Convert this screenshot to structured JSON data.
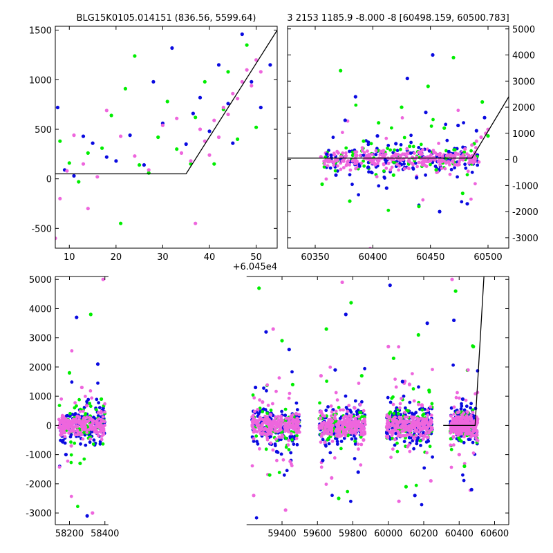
{
  "colors": {
    "green": "#00ee00",
    "blue": "#0a0ae0",
    "magenta": "#ee66dd",
    "model": "#000000"
  },
  "chart_data": [
    {
      "id": "top-left",
      "type": "scatter",
      "title": "BLG15K0105.014151 (836.56, 5599.64)",
      "xlim": [
        7,
        54.5
      ],
      "ylim": [
        -700,
        1540
      ],
      "xticks": [
        10,
        20,
        30,
        40,
        50
      ],
      "yticks": [
        -500,
        0,
        500,
        1000,
        1500
      ],
      "x_offset_label": "+6.045e4",
      "y_axis_side": "left",
      "grid": false,
      "model_line": {
        "x": [
          7,
          35,
          54.5
        ],
        "y": [
          50,
          50,
          1500
        ]
      },
      "series": [
        {
          "color_key": "green",
          "x": [
            8,
            10,
            12,
            14,
            17,
            19,
            21,
            22,
            24,
            25,
            27,
            29,
            31,
            33,
            36,
            37,
            39,
            41,
            43,
            44,
            46,
            48,
            50
          ],
          "y": [
            380,
            160,
            -30,
            260,
            310,
            640,
            -450,
            910,
            1240,
            140,
            60,
            420,
            780,
            300,
            150,
            620,
            980,
            150,
            700,
            1080,
            400,
            1350,
            520
          ]
        },
        {
          "color_key": "blue",
          "x": [
            7.5,
            9,
            11,
            13,
            15,
            18,
            20,
            23,
            26,
            28,
            30,
            32,
            35,
            36.5,
            38,
            40,
            42,
            44,
            45,
            47,
            49,
            51,
            53
          ],
          "y": [
            720,
            90,
            30,
            430,
            360,
            220,
            180,
            440,
            140,
            980,
            560,
            1320,
            350,
            660,
            820,
            480,
            1150,
            760,
            360,
            1460,
            980,
            720,
            1150
          ]
        },
        {
          "color_key": "magenta",
          "x": [
            7,
            8,
            9.5,
            11,
            13,
            14,
            16,
            18,
            21,
            24,
            27,
            30,
            33,
            34,
            36,
            37,
            38,
            39,
            40,
            41,
            42,
            43,
            44,
            45,
            46,
            47,
            48,
            49,
            50,
            51
          ],
          "y": [
            -600,
            -200,
            80,
            440,
            150,
            -300,
            20,
            690,
            430,
            230,
            90,
            540,
            610,
            260,
            180,
            -450,
            500,
            380,
            240,
            590,
            420,
            720,
            650,
            860,
            810,
            980,
            1100,
            940,
            1200,
            1080
          ]
        }
      ]
    },
    {
      "id": "top-right",
      "type": "scatter",
      "title": "3 2153 1185.9 -8.000 -8 [60498.159, 60500.783]",
      "xlim": [
        60326,
        60518
      ],
      "ylim": [
        -3400,
        5100
      ],
      "xticks": [
        60350,
        60400,
        60450,
        60500
      ],
      "yticks": [
        -3000,
        -2000,
        -1000,
        0,
        1000,
        2000,
        3000,
        4000,
        5000
      ],
      "y_axis_side": "right",
      "grid": false,
      "model_line": {
        "x": [
          60326,
          60486,
          60518
        ],
        "y": [
          50,
          50,
          2400
        ]
      },
      "series": [
        {
          "color_key": "green",
          "x": [
            60356,
            60372,
            60380,
            60392,
            60405,
            60418,
            60425,
            60432,
            60440,
            60448,
            60455,
            60462,
            60470,
            60478,
            60488,
            60495,
            60500
          ],
          "y": [
            -950,
            3400,
            -1600,
            700,
            1400,
            -600,
            2000,
            500,
            -1800,
            2800,
            -400,
            1200,
            3900,
            -1300,
            600,
            2200,
            900
          ]
        },
        {
          "color_key": "blue",
          "x": [
            60360,
            60368,
            60376,
            60385,
            60396,
            60404,
            60412,
            60420,
            60430,
            60438,
            60446,
            60452,
            60458,
            60466,
            60474,
            60482,
            60490,
            60497
          ],
          "y": [
            200,
            -600,
            1500,
            2400,
            -300,
            900,
            -1100,
            600,
            3100,
            -700,
            1800,
            4000,
            -2000,
            300,
            1300,
            -1700,
            1100,
            1600
          ]
        },
        {
          "color_key": "magenta",
          "x": [
            60355,
            60362,
            60370,
            60378,
            60386,
            60394,
            60402,
            60410,
            60418,
            60426,
            60434,
            60442,
            60450,
            60458,
            60466,
            60474,
            60480,
            60486,
            60490,
            60494,
            60498,
            60500
          ],
          "y": [
            100,
            0,
            250,
            -100,
            150,
            50,
            -200,
            100,
            0,
            200,
            -150,
            300,
            50,
            150,
            -100,
            200,
            400,
            550,
            700,
            850,
            1000,
            1150
          ]
        }
      ]
    },
    {
      "id": "bottom",
      "type": "scatter",
      "title": "",
      "xlim": [
        58120,
        60680
      ],
      "ylim": [
        -3400,
        5100
      ],
      "xticks": [
        58200,
        58400,
        59400,
        59600,
        59800,
        60000,
        60200,
        60400,
        60600
      ],
      "yticks": [
        -3000,
        -2000,
        -1000,
        0,
        1000,
        2000,
        3000,
        4000,
        5000
      ],
      "y_axis_side": "left",
      "grid": false,
      "axis_break": {
        "after": 58420,
        "before": 59200
      },
      "model_line": {
        "x": [
          60310,
          60490,
          60540
        ],
        "y": [
          0,
          0,
          5100
        ]
      },
      "seasons": [
        {
          "from": 58140,
          "to": 58400
        },
        {
          "from": 59230,
          "to": 59500
        },
        {
          "from": 59610,
          "to": 59870
        },
        {
          "from": 59990,
          "to": 60250
        },
        {
          "from": 60350,
          "to": 60505
        }
      ],
      "series": [
        {
          "color_key": "green",
          "x": [
            58200,
            58260,
            58320,
            58380,
            59270,
            59330,
            59400,
            59460,
            59650,
            59720,
            59790,
            59850,
            60030,
            60100,
            60170,
            60230,
            60380,
            60430,
            60480
          ],
          "y": [
            1800,
            -1300,
            3800,
            900,
            4700,
            -1700,
            2900,
            1400,
            3300,
            -2500,
            4200,
            1700,
            2300,
            -2100,
            3100,
            1200,
            4600,
            -1400,
            2700
          ]
        },
        {
          "color_key": "blue",
          "x": [
            58180,
            58240,
            58300,
            58360,
            59250,
            59310,
            59370,
            59440,
            59630,
            59700,
            59760,
            59830,
            60010,
            60080,
            60150,
            60220,
            60370,
            60420,
            60470
          ],
          "y": [
            -1000,
            3700,
            -3100,
            2100,
            1300,
            3200,
            -900,
            2600,
            -1200,
            1900,
            3800,
            -1600,
            4800,
            1500,
            -2400,
            3500,
            3600,
            900,
            -2200
          ]
        },
        {
          "color_key": "magenta",
          "x": [
            58160,
            58210,
            58270,
            58330,
            58390,
            59240,
            59290,
            59350,
            59420,
            59480,
            59620,
            59680,
            59740,
            59810,
            59860,
            60000,
            60060,
            60120,
            60190,
            60240,
            60360,
            60400,
            60450,
            60500
          ],
          "y": [
            200,
            -700,
            1300,
            -3000,
            5000,
            -2400,
            800,
            3300,
            -2900,
            400,
            1700,
            -1800,
            4900,
            600,
            -500,
            2700,
            -2600,
            1400,
            700,
            -1900,
            5000,
            -1000,
            1900,
            -200
          ]
        }
      ]
    }
  ]
}
